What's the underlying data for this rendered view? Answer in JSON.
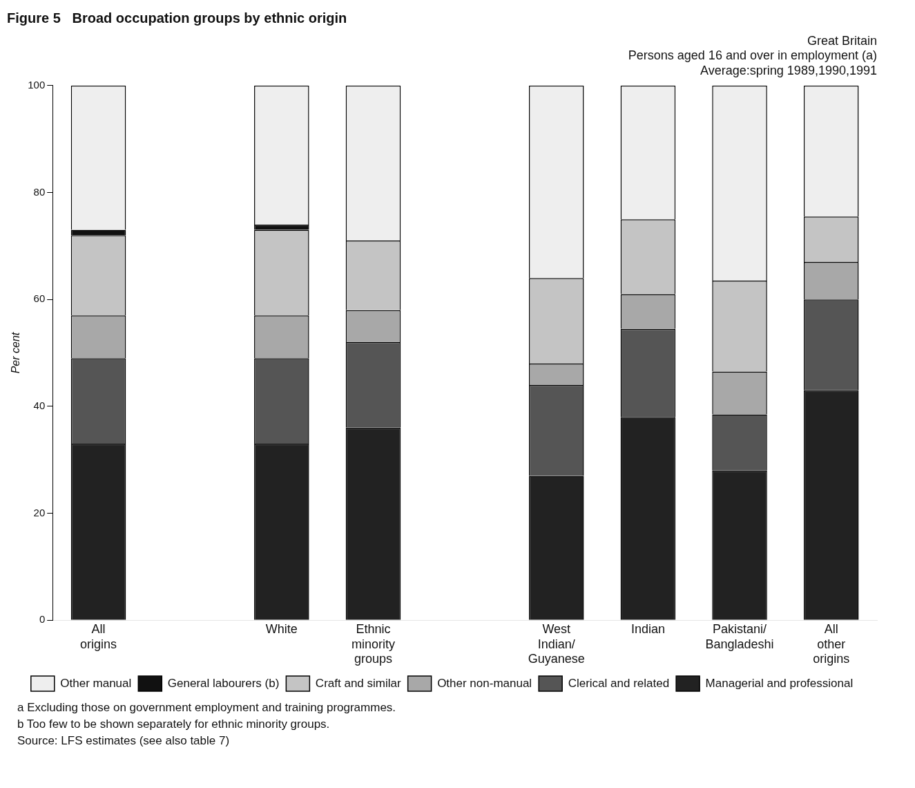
{
  "chart_data": {
    "type": "bar",
    "stacked": true,
    "title": "Figure 5   Broad occupation groups by ethnic origin",
    "subtitle": [
      "Great Britain",
      "Persons aged 16 and over in employment (a)",
      "Average:spring 1989,1990,1991"
    ],
    "ylabel": "Per cent",
    "categories": [
      "All origins",
      null,
      "White",
      "Ethnic minority groups",
      null,
      "West Indian/ Guyanese",
      "Indian",
      "Pakistani/ Bangladeshi",
      "All other origins"
    ],
    "series": [
      {
        "name": "Managerial and professional",
        "color": "#222222",
        "values": [
          33,
          null,
          33,
          36,
          null,
          27,
          38,
          28,
          43
        ]
      },
      {
        "name": "Clerical and related",
        "color": "#555555",
        "values": [
          16,
          null,
          16,
          16,
          null,
          17,
          16.5,
          10.5,
          17
        ]
      },
      {
        "name": "Other non-manual",
        "color": "#a8a8a8",
        "values": [
          8,
          null,
          8,
          6,
          null,
          4,
          6.5,
          8,
          7
        ]
      },
      {
        "name": "Craft and similar",
        "color": "#c4c4c4",
        "values": [
          15,
          null,
          16,
          13,
          null,
          16,
          14,
          17,
          8.5
        ]
      },
      {
        "name": "General labourers (b)",
        "color": "#111111",
        "values": [
          1,
          null,
          1,
          null,
          null,
          null,
          null,
          null,
          null
        ]
      },
      {
        "name": "Other manual",
        "color": "#eeeeee",
        "values": [
          27,
          null,
          26,
          29,
          null,
          36,
          25,
          36.5,
          24.5
        ]
      }
    ],
    "ylim": [
      0,
      100
    ],
    "yticks": [
      0,
      20,
      40,
      60,
      80,
      100
    ],
    "grid": false,
    "legend": "bottom",
    "annotations": [
      "a Excluding those on government employment and training programmes.",
      "b Too few to be shown separately for ethnic minority groups.",
      "Source: LFS estimates (see also table 7)"
    ]
  }
}
